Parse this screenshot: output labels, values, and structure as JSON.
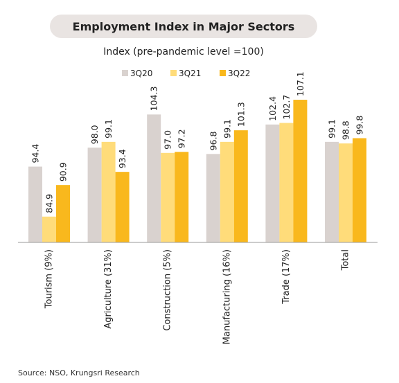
{
  "chart_data": {
    "type": "bar",
    "title": "Employment Index in Major Sectors",
    "subtitle": "Index (pre-pandemic level =100)",
    "categories": [
      "Tourism (9%)",
      "Agriculture (31%)",
      "Construction (5%)",
      "Manufacturing (16%)",
      "Trade (17%)",
      "Total"
    ],
    "series": [
      {
        "name": "3Q20",
        "color": "#d9d2cf",
        "values": [
          94.4,
          98.0,
          104.3,
          96.8,
          102.4,
          99.1
        ]
      },
      {
        "name": "3Q21",
        "color": "#ffdc7a",
        "values": [
          84.9,
          99.1,
          97.0,
          99.1,
          102.7,
          98.8
        ]
      },
      {
        "name": "3Q22",
        "color": "#f9b81d",
        "values": [
          90.9,
          93.4,
          97.2,
          101.3,
          107.1,
          99.8
        ]
      }
    ],
    "ylim": [
      80,
      110
    ],
    "legend": "top-center",
    "grid": false,
    "xlabel": "",
    "ylabel": ""
  },
  "source": "Source: NSO, Krungsri Research"
}
